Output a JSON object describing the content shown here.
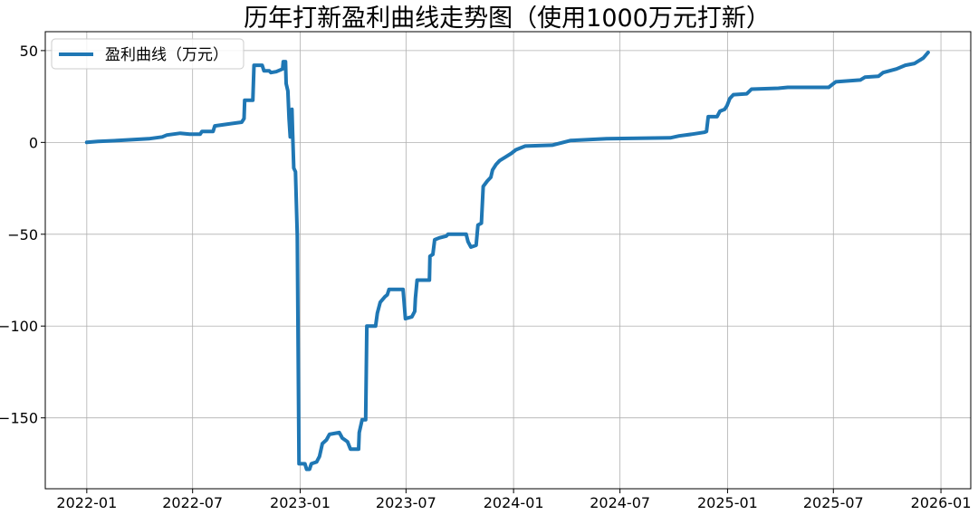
{
  "chart_data": {
    "type": "line",
    "title": "历年打新盈利曲线走势图（使用1000万元打新）",
    "xlabel": "",
    "ylabel": "",
    "xlim": [
      "2021-10-22",
      "2026-02-21"
    ],
    "ylim": [
      -188.6,
      60.3
    ],
    "grid": true,
    "legend_position": "top-left",
    "x_ticks": [
      "2022-01",
      "2022-07",
      "2023-01",
      "2023-07",
      "2024-01",
      "2024-07",
      "2025-01",
      "2025-07",
      "2026-01"
    ],
    "y_ticks": [
      -150,
      -100,
      -50,
      0,
      50
    ],
    "y_tick_labels": [
      "−150",
      "−100",
      "−50",
      "0",
      "50"
    ],
    "series": [
      {
        "name": "盈利曲线（万元）",
        "color": "#1f77b4",
        "points": [
          [
            "2022-01-01",
            0
          ],
          [
            "2022-01-20",
            0.5
          ],
          [
            "2022-02-22",
            1
          ],
          [
            "2022-04-17",
            2
          ],
          [
            "2022-05-10",
            3
          ],
          [
            "2022-05-18",
            4
          ],
          [
            "2022-06-10",
            5
          ],
          [
            "2022-06-26",
            4.5
          ],
          [
            "2022-07-14",
            4.5
          ],
          [
            "2022-07-17",
            6
          ],
          [
            "2022-08-05",
            6
          ],
          [
            "2022-08-08",
            9
          ],
          [
            "2022-08-30",
            10
          ],
          [
            "2022-09-23",
            11
          ],
          [
            "2022-09-27",
            13
          ],
          [
            "2022-09-28",
            23
          ],
          [
            "2022-10-12",
            23
          ],
          [
            "2022-10-14",
            42
          ],
          [
            "2022-10-28",
            42
          ],
          [
            "2022-10-31",
            39
          ],
          [
            "2022-11-09",
            39
          ],
          [
            "2022-11-12",
            38
          ],
          [
            "2022-11-21",
            38.5
          ],
          [
            "2022-12-02",
            40
          ],
          [
            "2022-12-03",
            44
          ],
          [
            "2022-12-07",
            44
          ],
          [
            "2022-12-08",
            32
          ],
          [
            "2022-12-11",
            28
          ],
          [
            "2022-12-13",
            13
          ],
          [
            "2022-12-15",
            3
          ],
          [
            "2022-12-18",
            18
          ],
          [
            "2022-12-19",
            6
          ],
          [
            "2022-12-21",
            -14
          ],
          [
            "2022-12-24",
            -16
          ],
          [
            "2022-12-27",
            -51
          ],
          [
            "2022-12-30",
            -175
          ],
          [
            "2023-01-09",
            -175
          ],
          [
            "2023-01-12",
            -178
          ],
          [
            "2023-01-17",
            -178
          ],
          [
            "2023-01-20",
            -175
          ],
          [
            "2023-01-29",
            -174
          ],
          [
            "2023-02-03",
            -171
          ],
          [
            "2023-02-08",
            -164
          ],
          [
            "2023-02-15",
            -162
          ],
          [
            "2023-02-20",
            -159
          ],
          [
            "2023-03-09",
            -158
          ],
          [
            "2023-03-14",
            -161
          ],
          [
            "2023-03-23",
            -163
          ],
          [
            "2023-03-28",
            -167
          ],
          [
            "2023-04-11",
            -167
          ],
          [
            "2023-04-12",
            -158
          ],
          [
            "2023-04-17",
            -151
          ],
          [
            "2023-04-23",
            -151
          ],
          [
            "2023-04-25",
            -100
          ],
          [
            "2023-05-10",
            -100
          ],
          [
            "2023-05-13",
            -93
          ],
          [
            "2023-05-18",
            -87
          ],
          [
            "2023-05-26",
            -84
          ],
          [
            "2023-05-30",
            -83
          ],
          [
            "2023-06-02",
            -80
          ],
          [
            "2023-06-26",
            -80
          ],
          [
            "2023-06-30",
            -96
          ],
          [
            "2023-07-11",
            -95
          ],
          [
            "2023-07-16",
            -92
          ],
          [
            "2023-07-17",
            -85
          ],
          [
            "2023-07-20",
            -75
          ],
          [
            "2023-08-10",
            -75
          ],
          [
            "2023-08-11",
            -62
          ],
          [
            "2023-08-16",
            -61
          ],
          [
            "2023-08-19",
            -53
          ],
          [
            "2023-08-27",
            -52
          ],
          [
            "2023-09-08",
            -51
          ],
          [
            "2023-09-11",
            -50
          ],
          [
            "2023-10-12",
            -50
          ],
          [
            "2023-10-15",
            -54
          ],
          [
            "2023-10-20",
            -57
          ],
          [
            "2023-10-29",
            -56
          ],
          [
            "2023-11-01",
            -45
          ],
          [
            "2023-11-07",
            -44
          ],
          [
            "2023-11-10",
            -24
          ],
          [
            "2023-11-17",
            -21
          ],
          [
            "2023-11-23",
            -19
          ],
          [
            "2023-11-26",
            -15
          ],
          [
            "2023-12-02",
            -12
          ],
          [
            "2023-12-08",
            -10
          ],
          [
            "2023-12-18",
            -8
          ],
          [
            "2023-12-28",
            -6
          ],
          [
            "2024-01-05",
            -4
          ],
          [
            "2024-01-21",
            -2
          ],
          [
            "2024-03-07",
            -1.5
          ],
          [
            "2024-03-26",
            0
          ],
          [
            "2024-04-07",
            1
          ],
          [
            "2024-06-08",
            2
          ],
          [
            "2024-09-25",
            2.5
          ],
          [
            "2024-10-10",
            3.5
          ],
          [
            "2024-11-02",
            4.5
          ],
          [
            "2024-11-22",
            5.5
          ],
          [
            "2024-11-26",
            6
          ],
          [
            "2024-11-29",
            14
          ],
          [
            "2024-12-14",
            14
          ],
          [
            "2024-12-19",
            17
          ],
          [
            "2024-12-27",
            18
          ],
          [
            "2024-12-31",
            20
          ],
          [
            "2025-01-05",
            24
          ],
          [
            "2025-01-11",
            26
          ],
          [
            "2025-02-03",
            26.5
          ],
          [
            "2025-02-11",
            29
          ],
          [
            "2025-03-29",
            29.5
          ],
          [
            "2025-04-14",
            30
          ],
          [
            "2025-06-23",
            30
          ],
          [
            "2025-07-05",
            33
          ],
          [
            "2025-08-16",
            34
          ],
          [
            "2025-08-24",
            35.5
          ],
          [
            "2025-09-16",
            36
          ],
          [
            "2025-09-24",
            38
          ],
          [
            "2025-10-17",
            40
          ],
          [
            "2025-11-01",
            42
          ],
          [
            "2025-11-17",
            43
          ],
          [
            "2025-12-02",
            46
          ],
          [
            "2025-12-10",
            49
          ]
        ]
      }
    ]
  }
}
